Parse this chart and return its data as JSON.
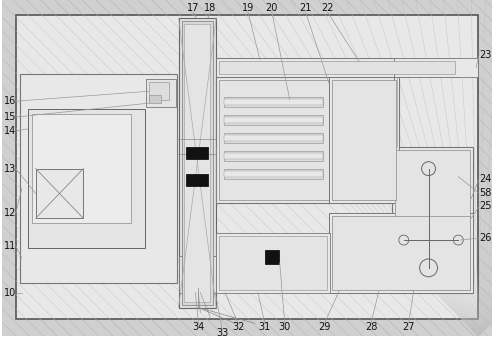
{
  "figsize": [
    4.94,
    3.39
  ],
  "dpi": 100,
  "bg_hatch_color": "#c8c8c8",
  "bg_hatch_ec": "#b0b0b0",
  "box_fc": "#efefef",
  "box_ec": "#888888",
  "box_ec2": "#aaaaaa",
  "label_fs": 7,
  "label_color": "#111111",
  "line_color": "#888888",
  "leader_color": "#999999"
}
